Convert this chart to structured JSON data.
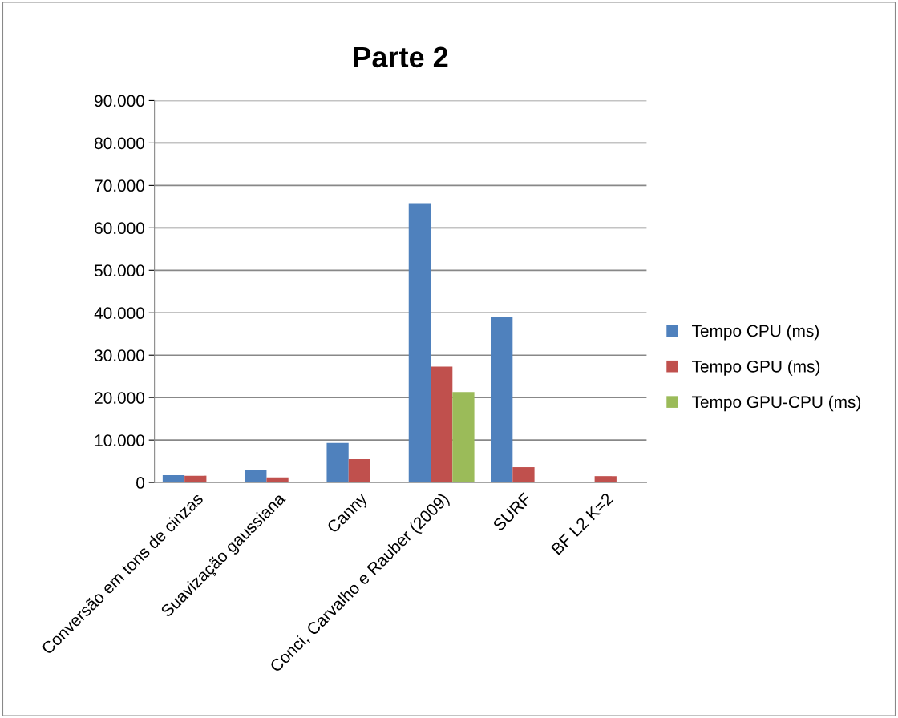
{
  "chart_data": {
    "type": "bar",
    "title": "Parte 2",
    "categories": [
      "Conversão em tons de cinzas",
      "Suavização gaussiana",
      "Canny",
      "Conci, Carvalho e Rauber (2009)",
      "SURF",
      "BF L2 K=2"
    ],
    "series": [
      {
        "name": "Tempo CPU (ms)",
        "color": "#4f81bd",
        "values": [
          1700,
          2900,
          9300,
          65800,
          38900,
          null
        ]
      },
      {
        "name": "Tempo GPU (ms)",
        "color": "#c0504d",
        "values": [
          1600,
          1200,
          5500,
          27300,
          3600,
          1500
        ]
      },
      {
        "name": "Tempo GPU-CPU (ms)",
        "color": "#9bbb59",
        "values": [
          null,
          null,
          null,
          21300,
          null,
          null
        ]
      }
    ],
    "ylim": [
      0,
      90000
    ],
    "yticks": [
      {
        "value": 0,
        "label": "0"
      },
      {
        "value": 10000,
        "label": "10.000"
      },
      {
        "value": 20000,
        "label": "20.000"
      },
      {
        "value": 30000,
        "label": "30.000"
      },
      {
        "value": 40000,
        "label": "40.000"
      },
      {
        "value": 50000,
        "label": "50.000"
      },
      {
        "value": 60000,
        "label": "60.000"
      },
      {
        "value": 70000,
        "label": "70.000"
      },
      {
        "value": 80000,
        "label": "80.000"
      },
      {
        "value": 90000,
        "label": "90.000"
      }
    ],
    "grid": "y",
    "legend": "right"
  }
}
